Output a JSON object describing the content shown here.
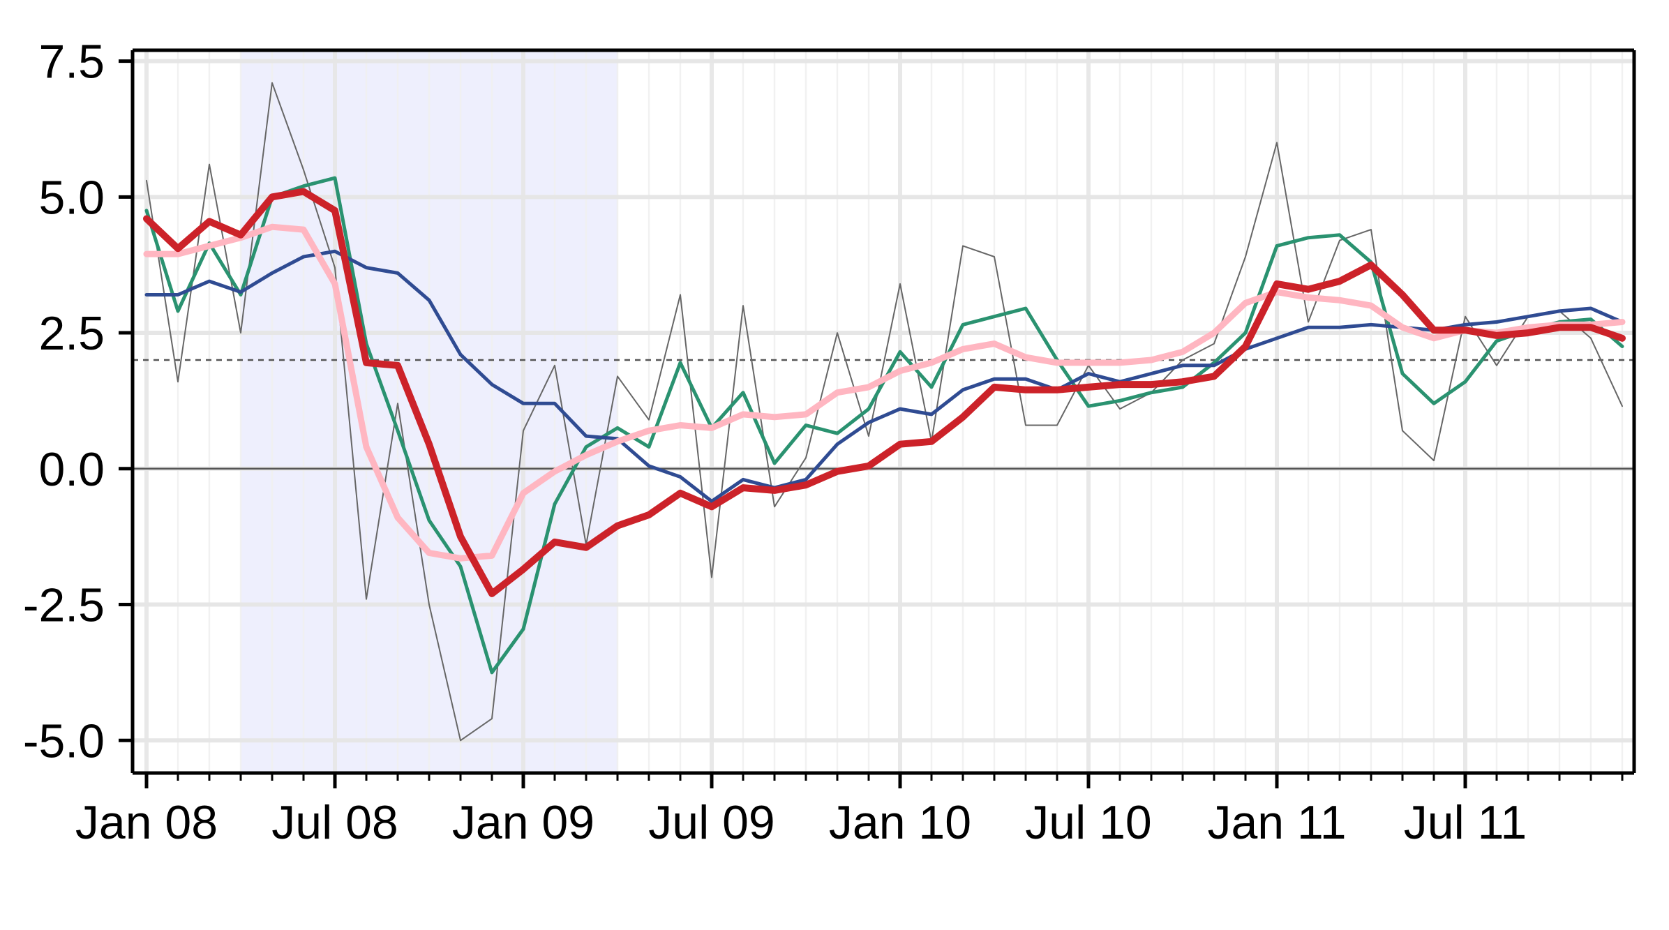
{
  "chart_data": {
    "type": "line",
    "title": "",
    "xlabel": "",
    "ylabel": "",
    "x_tick_labels": [
      "Jan 08",
      "Jul 08",
      "Jan 09",
      "Jul 09",
      "Jan 10",
      "Jul 10",
      "Jan 11",
      "Jul 11"
    ],
    "y_tick_labels": [
      "-5.0",
      "-2.5",
      "0.0",
      "2.5",
      "5.0",
      "7.5"
    ],
    "y_ticks": [
      -5.0,
      -2.5,
      0.0,
      2.5,
      5.0,
      7.5
    ],
    "ylim": [
      -5.6,
      7.7
    ],
    "x_range": [
      "2008-01",
      "2011-12"
    ],
    "grid": true,
    "reference_lines": [
      {
        "y": 0.0,
        "style": "solid",
        "color": "#555555"
      },
      {
        "y": 2.0,
        "style": "dashed",
        "color": "#555555"
      }
    ],
    "shaded_period": {
      "start": "2008-04",
      "end": "2009-04",
      "color": "#eeeffd"
    },
    "x": [
      "2008-01",
      "2008-02",
      "2008-03",
      "2008-04",
      "2008-05",
      "2008-06",
      "2008-07",
      "2008-08",
      "2008-09",
      "2008-10",
      "2008-11",
      "2008-12",
      "2009-01",
      "2009-02",
      "2009-03",
      "2009-04",
      "2009-05",
      "2009-06",
      "2009-07",
      "2009-08",
      "2009-09",
      "2009-10",
      "2009-11",
      "2009-12",
      "2010-01",
      "2010-02",
      "2010-03",
      "2010-04",
      "2010-05",
      "2010-06",
      "2010-07",
      "2010-08",
      "2010-09",
      "2010-10",
      "2010-11",
      "2010-12",
      "2011-01",
      "2011-02",
      "2011-03",
      "2011-04",
      "2011-05",
      "2011-06",
      "2011-07",
      "2011-08",
      "2011-09",
      "2011-10",
      "2011-11",
      "2011-12"
    ],
    "series": [
      {
        "color": "#666666",
        "width": 2,
        "values": [
          5.3,
          1.6,
          5.6,
          2.5,
          7.1,
          5.5,
          3.7,
          -2.4,
          1.2,
          -2.5,
          -5.0,
          -4.6,
          0.7,
          1.9,
          -1.4,
          1.7,
          0.9,
          3.2,
          -2.0,
          3.0,
          -0.7,
          0.2,
          2.5,
          0.6,
          3.4,
          0.5,
          4.1,
          3.9,
          0.8,
          0.8,
          1.9,
          1.1,
          1.4,
          2.0,
          2.3,
          3.9,
          6.0,
          2.7,
          4.2,
          4.4,
          0.7,
          0.15,
          2.8,
          1.9,
          2.8,
          2.9,
          2.4,
          1.15
        ]
      },
      {
        "color": "#2a9270",
        "width": 5,
        "values": [
          4.75,
          2.9,
          4.15,
          3.2,
          5.0,
          5.2,
          5.35,
          2.3,
          0.7,
          -0.95,
          -1.8,
          -3.75,
          -2.95,
          -0.65,
          0.4,
          0.75,
          0.4,
          1.95,
          0.75,
          1.4,
          0.1,
          0.8,
          0.65,
          1.1,
          2.15,
          1.5,
          2.65,
          2.8,
          2.95,
          2.0,
          1.15,
          1.25,
          1.4,
          1.5,
          1.95,
          2.5,
          4.1,
          4.25,
          4.3,
          3.8,
          1.75,
          1.2,
          1.6,
          2.35,
          2.55,
          2.7,
          2.75,
          2.25
        ]
      },
      {
        "color": "#2f4b92",
        "width": 5,
        "values": [
          3.2,
          3.2,
          3.45,
          3.25,
          3.6,
          3.9,
          4.0,
          3.7,
          3.6,
          3.1,
          2.1,
          1.55,
          1.2,
          1.2,
          0.6,
          0.55,
          0.05,
          -0.15,
          -0.6,
          -0.2,
          -0.35,
          -0.2,
          0.45,
          0.85,
          1.1,
          1.0,
          1.45,
          1.65,
          1.65,
          1.45,
          1.75,
          1.6,
          1.75,
          1.9,
          1.9,
          2.2,
          2.4,
          2.6,
          2.6,
          2.65,
          2.6,
          2.55,
          2.65,
          2.7,
          2.8,
          2.9,
          2.95,
          2.7
        ]
      },
      {
        "color": "#ffb6c1",
        "width": 9,
        "values": [
          3.95,
          3.95,
          4.1,
          4.25,
          4.45,
          4.4,
          3.4,
          0.4,
          -0.9,
          -1.55,
          -1.65,
          -1.6,
          -0.45,
          -0.05,
          0.25,
          0.5,
          0.7,
          0.8,
          0.75,
          1.0,
          0.95,
          1.0,
          1.4,
          1.5,
          1.8,
          1.95,
          2.2,
          2.3,
          2.05,
          1.95,
          1.95,
          1.95,
          2.0,
          2.15,
          2.5,
          3.05,
          3.25,
          3.15,
          3.1,
          3.0,
          2.6,
          2.4,
          2.55,
          2.5,
          2.6,
          2.65,
          2.65,
          2.7
        ]
      },
      {
        "color": "#cc2229",
        "width": 10,
        "values": [
          4.6,
          4.05,
          4.55,
          4.3,
          5.0,
          5.1,
          4.75,
          1.95,
          1.9,
          0.45,
          -1.25,
          -2.3,
          -1.85,
          -1.35,
          -1.45,
          -1.05,
          -0.85,
          -0.45,
          -0.7,
          -0.35,
          -0.4,
          -0.3,
          -0.05,
          0.05,
          0.45,
          0.5,
          0.95,
          1.5,
          1.45,
          1.45,
          1.5,
          1.55,
          1.55,
          1.6,
          1.7,
          2.25,
          3.4,
          3.3,
          3.45,
          3.75,
          3.2,
          2.55,
          2.55,
          2.45,
          2.5,
          2.6,
          2.6,
          2.4
        ]
      }
    ]
  }
}
